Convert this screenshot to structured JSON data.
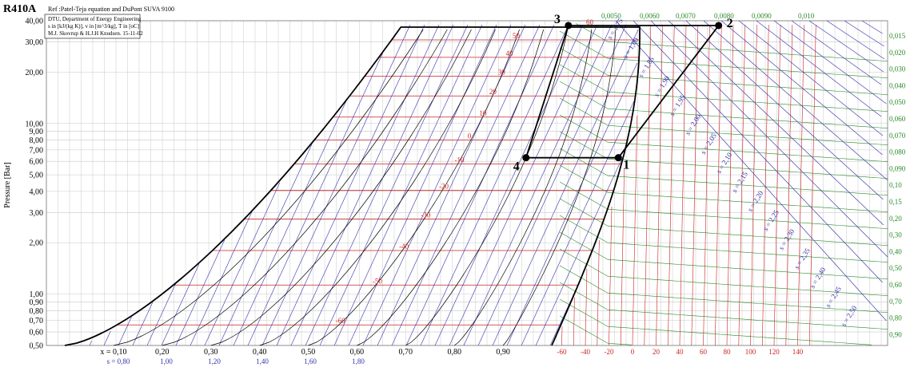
{
  "chart_data": {
    "type": "line",
    "title": "R410A",
    "subtitle": "Ref :Patel-Teja equation and DuPont SUVA 9100",
    "info_lines": [
      "DTU, Department of Energy Engineering",
      "s in [kJ/(kg K)], v in [m^3/kg], T in [oC]",
      "M.J. Skovrup & H.J.H Knudsen. 15-11-02"
    ],
    "ylabel": "Pressure [Bar]",
    "y_scale": "log",
    "ylim": [
      0.5,
      40
    ],
    "y_ticks": [
      "40,00",
      "30,00",
      "20,00",
      "10,00",
      "9,00",
      "8,00",
      "7,00",
      "6,00",
      "5,00",
      "4,00",
      "3,00",
      "2,00",
      "1,00",
      "0,90",
      "0,80",
      "0,70",
      "0,60",
      "0,50"
    ],
    "y_tick_values": [
      40,
      30,
      20,
      10,
      9,
      8,
      7,
      6,
      5,
      4,
      3,
      2,
      1,
      0.9,
      0.8,
      0.7,
      0.6,
      0.5
    ],
    "x_quality_ticks": [
      "x = 0,10",
      "0,20",
      "0,30",
      "0,40",
      "0,50",
      "0,60",
      "0,70",
      "0,80",
      "0,90"
    ],
    "x_quality_values": [
      0.1,
      0.2,
      0.3,
      0.4,
      0.5,
      0.6,
      0.7,
      0.8,
      0.9
    ],
    "x_entropy_ticks": [
      "s = 0,80",
      "1,00",
      "1,20",
      "1,40",
      "1,60",
      "1,80"
    ],
    "x_entropy_values": [
      0.8,
      1.0,
      1.2,
      1.4,
      1.6,
      1.8
    ],
    "x_temp_ticks": [
      "-60",
      "-40",
      "-20",
      "0",
      "20",
      "40",
      "60",
      "80",
      "100",
      "120",
      "140"
    ],
    "x_temp_values": [
      -60,
      -40,
      -20,
      0,
      20,
      40,
      60,
      80,
      100,
      120,
      140
    ],
    "isotherm_labels": [
      "50",
      "40",
      "30",
      "20",
      "10",
      "0",
      "-10",
      "-20",
      "-30",
      "-40",
      "-50",
      "-60",
      "60"
    ],
    "isotherm_values": [
      50,
      40,
      30,
      20,
      10,
      0,
      -10,
      -20,
      -30,
      -40,
      -50,
      -60,
      60
    ],
    "volume_labels_top": [
      "0,0050",
      "0,0060",
      "0,0070",
      "0,0080",
      "0,0090",
      "0,010"
    ],
    "volume_labels_right": [
      "0,015",
      "0,020",
      "0,030",
      "0,040",
      "0,050",
      "0,060",
      "0,070",
      "0,080",
      "0,090",
      "0,10",
      "0,15",
      "0,20",
      "0,30",
      "0,40",
      "0,50",
      "0,60",
      "0,70",
      "0,80",
      "0,90"
    ],
    "entropy_labels": [
      "s = 1,75",
      "s = 1,80",
      "s = 1,85",
      "s = 1,90",
      "s = 1,95",
      "s = 2,00",
      "s = 2,05",
      "s = 2,10",
      "s = 2,15",
      "s = 2,20",
      "s = 2,25",
      "s = 2,30",
      "s = 2,35",
      "s = 2,40",
      "s = 2,45",
      "s = 2,50"
    ],
    "cycle": {
      "points": [
        {
          "label": "1",
          "T": -12,
          "p": 6.3
        },
        {
          "label": "2",
          "T": 73,
          "p": 37.5
        },
        {
          "label": "3",
          "x": 0.7,
          "p": 37.5
        },
        {
          "label": "4",
          "x": 0.7,
          "p": 6.3
        }
      ],
      "path": [
        "1",
        "2",
        "3",
        "4",
        "1"
      ]
    },
    "grid": true,
    "colors": {
      "isotherm": "#cc2222",
      "isentrope": "#3333aa",
      "quality": "#000000",
      "isochore": "#2a8a2a",
      "grid": "#c8c8c8"
    }
  }
}
